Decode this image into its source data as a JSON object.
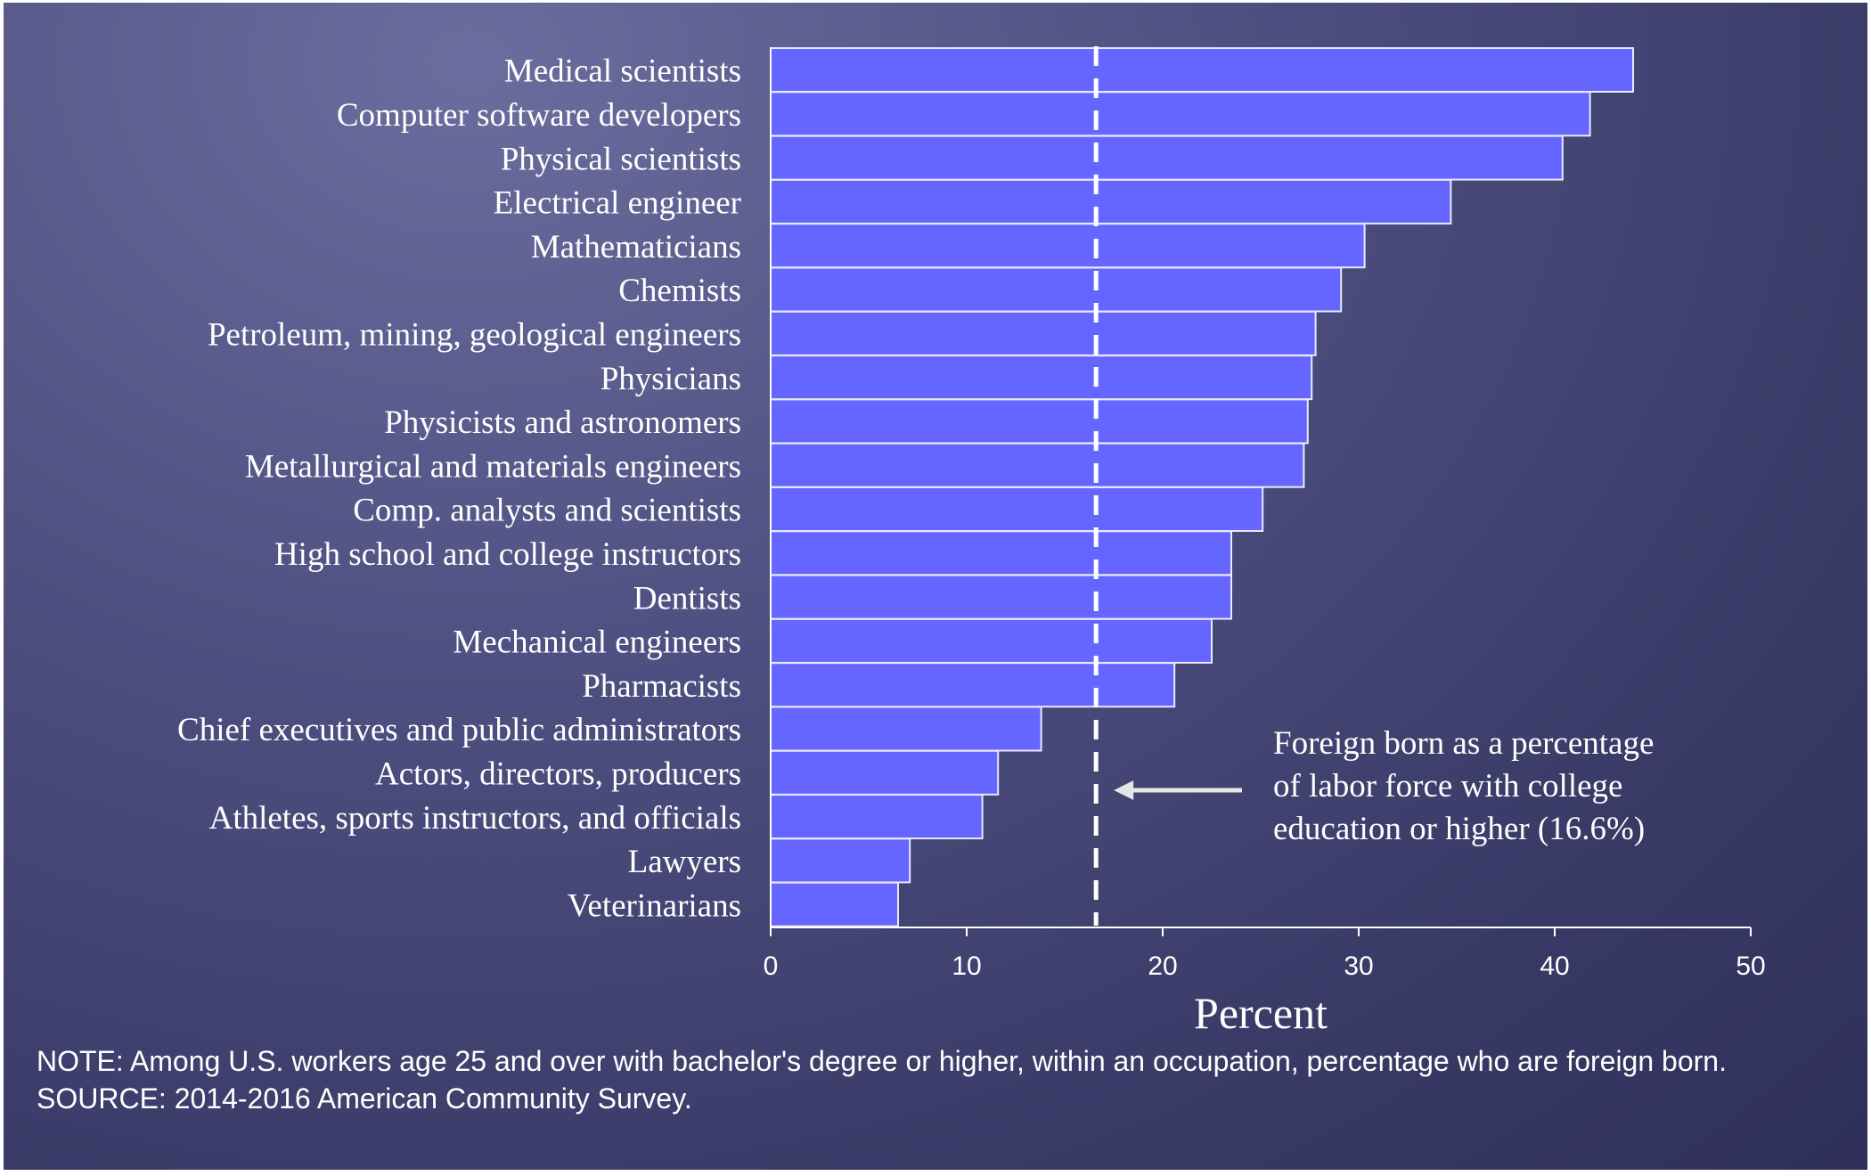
{
  "chart_data": {
    "type": "bar",
    "orientation": "horizontal",
    "categories": [
      "Medical scientists",
      "Computer software developers",
      "Physical scientists",
      "Electrical engineer",
      "Mathematicians",
      "Chemists",
      "Petroleum, mining, geological engineers",
      "Physicians",
      "Physicists and astronomers",
      "Metallurgical and materials engineers",
      "Comp. analysts and scientists",
      "High school and college instructors",
      "Dentists",
      "Mechanical engineers",
      "Pharmacists",
      "Chief executives and public administrators",
      "Actors, directors, producers",
      "Athletes, sports instructors, and officials",
      "Lawyers",
      "Veterinarians"
    ],
    "values": [
      44,
      41.8,
      40.4,
      34.7,
      30.3,
      29.1,
      27.8,
      27.6,
      27.4,
      27.2,
      25.1,
      23.5,
      23.5,
      22.5,
      20.6,
      13.8,
      11.6,
      10.8,
      7.1,
      6.5
    ],
    "xlabel": "Percent",
    "xlim": [
      0,
      50
    ],
    "xticks": [
      0,
      10,
      20,
      30,
      40,
      50
    ],
    "reference_line": {
      "value": 16.6,
      "label_lines": [
        "Foreign born as a percentage",
        "of labor force with college",
        "education or higher (16.6%)"
      ]
    },
    "bar_color": "#6466ff",
    "grid": false
  },
  "notes": {
    "note": "NOTE: Among U.S. workers age 25 and over with bachelor's degree or higher, within an occupation, percentage who are foreign born.",
    "source": "SOURCE: 2014-2016 American Community Survey."
  }
}
